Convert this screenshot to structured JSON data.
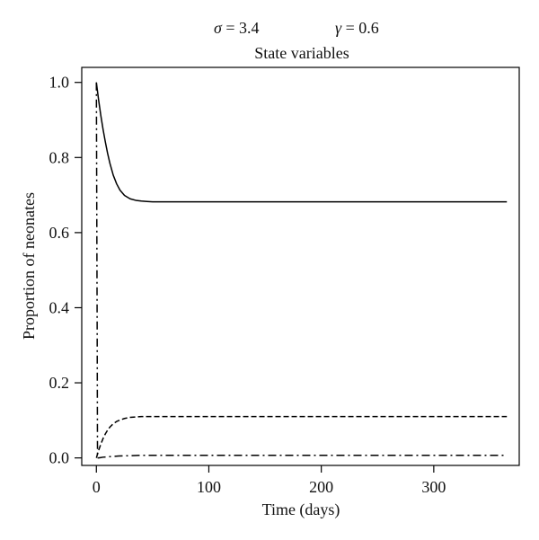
{
  "header": {
    "param1": {
      "symbol": "σ",
      "text": " = 3.4"
    },
    "param2": {
      "symbol": "γ",
      "text": " = 0.6"
    },
    "subtitle": "State variables"
  },
  "chart_data": {
    "type": "line",
    "title": "State variables",
    "xlabel": "Time (days)",
    "ylabel": "Proportion of neonates",
    "xlim": [
      -13,
      376
    ],
    "ylim": [
      -0.02,
      1.04
    ],
    "x_ticks": [
      0,
      100,
      200,
      300
    ],
    "y_ticks": [
      0.0,
      0.2,
      0.4,
      0.6,
      0.8,
      1.0
    ],
    "x_tick_labels": [
      "0",
      "100",
      "200",
      "300"
    ],
    "y_tick_labels": [
      "0.0",
      "0.2",
      "0.4",
      "0.6",
      "0.8",
      "1.0"
    ],
    "grid": false,
    "legend": "none",
    "series": [
      {
        "style": "solid",
        "color": "#000000",
        "x": [
          0,
          2,
          4,
          6,
          8,
          10,
          12,
          15,
          18,
          21,
          25,
          30,
          35,
          40,
          45,
          50,
          55,
          60,
          80,
          100,
          150,
          200,
          250,
          300,
          365
        ],
        "y": [
          1.0,
          0.953,
          0.911,
          0.874,
          0.841,
          0.811,
          0.785,
          0.753,
          0.73,
          0.713,
          0.699,
          0.69,
          0.686,
          0.684,
          0.683,
          0.682,
          0.682,
          0.682,
          0.682,
          0.682,
          0.682,
          0.682,
          0.682,
          0.682,
          0.682
        ]
      },
      {
        "style": "dashed",
        "color": "#000000",
        "x": [
          0,
          2,
          4,
          6,
          8,
          10,
          12,
          15,
          18,
          21,
          25,
          30,
          35,
          40,
          45,
          50,
          55,
          60,
          80,
          100,
          150,
          200,
          250,
          300,
          365
        ],
        "y": [
          0.0,
          0.02,
          0.037,
          0.052,
          0.064,
          0.074,
          0.082,
          0.091,
          0.097,
          0.101,
          0.105,
          0.108,
          0.109,
          0.11,
          0.11,
          0.11,
          0.11,
          0.11,
          0.11,
          0.11,
          0.11,
          0.11,
          0.11,
          0.11,
          0.11
        ]
      },
      {
        "style": "dashdot",
        "color": "#000000",
        "x": [
          0,
          0.4,
          0.7,
          1,
          2,
          4,
          6,
          10,
          15,
          20,
          30,
          40,
          60,
          100,
          200,
          300,
          365
        ],
        "y": [
          1.0,
          0.62,
          0.35,
          0.0,
          0.0,
          0.001,
          0.002,
          0.003,
          0.004,
          0.005,
          0.006,
          0.007,
          0.007,
          0.007,
          0.007,
          0.007,
          0.007
        ]
      }
    ]
  }
}
